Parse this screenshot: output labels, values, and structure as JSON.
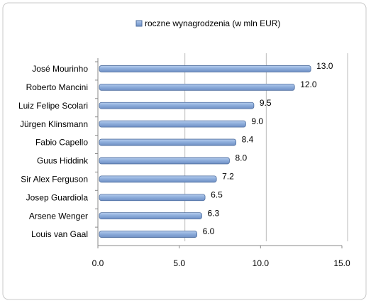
{
  "chart_data": {
    "type": "bar",
    "orientation": "horizontal",
    "categories": [
      "José Mourinho",
      "Roberto Mancini",
      "Luiz Felipe Scolari",
      "Jürgen Klinsmann",
      "Fabio Capello",
      "Guus Hiddink",
      "Sir Alex Ferguson",
      "Josep Guardiola",
      "Arsene Wenger",
      "Louis van Gaal"
    ],
    "series": [
      {
        "name": "roczne wynagrodzenia (w mln EUR)",
        "color": "#8eaedc",
        "values": [
          13,
          12,
          9.5,
          9,
          8.4,
          8,
          7.2,
          6.5,
          6.3,
          6
        ],
        "value_labels": [
          "13.0",
          "12.0",
          "9.5",
          "9.0",
          "8.4",
          "8.0",
          "7.2",
          "6.5",
          "6.3",
          "6.0"
        ]
      }
    ],
    "xlim": [
      0,
      15
    ],
    "xticks": [
      {
        "value": 0,
        "label": "0.0"
      },
      {
        "value": 5,
        "label": "5.0"
      },
      {
        "value": 10,
        "label": "10.0"
      },
      {
        "value": 15,
        "label": "15.0"
      }
    ],
    "grid": true,
    "legend": "top"
  }
}
